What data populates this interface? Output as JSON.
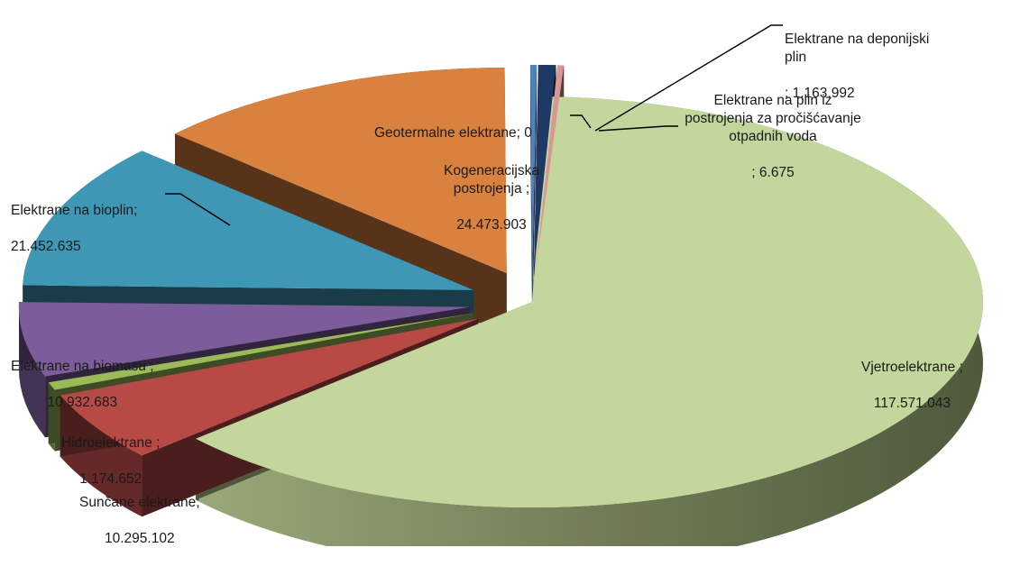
{
  "chart_data": {
    "type": "pie",
    "style": "3d-exploded",
    "slices": [
      {
        "name": "Vjetroelektrane",
        "sep": "  ;",
        "value_text": "117.571.043",
        "value": 117571043,
        "color": "#c3d69b"
      },
      {
        "name": "Sunčane elektrane;",
        "sep": "",
        "value_text": "10.295.102",
        "value": 10295102,
        "color": "#b84a46"
      },
      {
        "name": "Hidroelektrane",
        "sep": "  ;",
        "value_text": "1.174.652",
        "value": 1174652,
        "color": "#9bbb59"
      },
      {
        "name": "Elektrane na biomasu",
        "sep": "  ;",
        "value_text": "10.932.683",
        "value": 10932683,
        "color": "#7a5d9a"
      },
      {
        "name": "Elektrane na bioplin;",
        "sep": "",
        "value_text": "21.452.635",
        "value": 21452635,
        "color": "#3e97b4"
      },
      {
        "name": "Kogeneracijska postrojenja",
        "sep": "  ;",
        "value_text": "24.473.903",
        "value": 24473903,
        "color": "#d9813f"
      },
      {
        "name": "Geotermalne elektrane",
        "sep": "; ",
        "value_text": "0",
        "value": 0,
        "color": "#4f81bd"
      },
      {
        "name": "Elektrane na deponijski plin",
        "sep": "; ",
        "value_text": "1.163.992",
        "value": 1163992,
        "color": "#1f3864"
      },
      {
        "name": "Elektrane na plin iz postrojenja za pročišćavanje otpadnih voda",
        "sep": " ; ",
        "value_text": "6.675",
        "value": 6675,
        "color": "#d99694"
      }
    ]
  }
}
